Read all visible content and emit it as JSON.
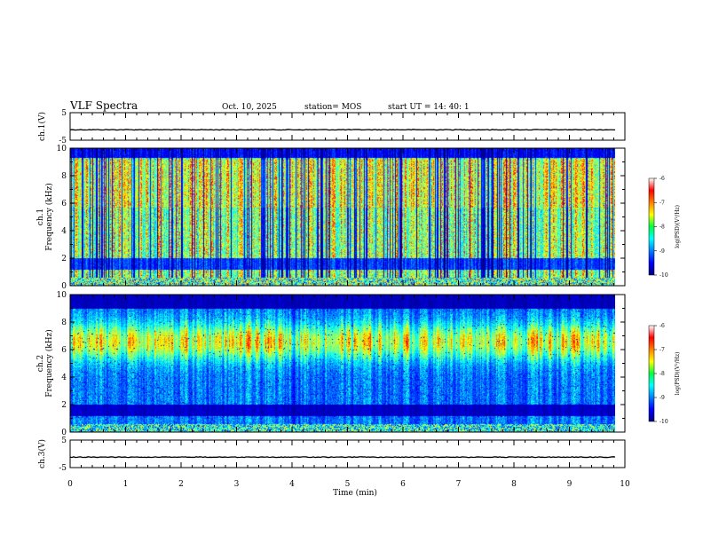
{
  "header": {
    "title": "VLF Spectra",
    "date": "Oct. 10, 2025",
    "station": "station= MOS",
    "start_ut": "start UT =   14: 40: 1"
  },
  "chart_data": {
    "type": "heatmap",
    "title": "VLF Spectra",
    "xlabel": "Time  (min)",
    "xlim": [
      0,
      10
    ],
    "x_ticks": [
      "0",
      "1",
      "2",
      "3",
      "4",
      "5",
      "6",
      "7",
      "8",
      "9",
      "10"
    ],
    "data_end_min": 9.83,
    "panels": [
      {
        "id": "ch1-voltage",
        "kind": "line",
        "ylabel": "ch.1(V)",
        "ylim": [
          -5,
          5
        ],
        "y_ticks": [
          "5",
          "-5"
        ],
        "baseline": -1.2
      },
      {
        "id": "ch1-spectrogram",
        "kind": "spectrogram",
        "ylabel_top": "ch.1",
        "ylabel": "Frequency (kHz)",
        "ylim": [
          0,
          10
        ],
        "y_ticks": [
          "0",
          "2",
          "4",
          "6",
          "8",
          "10"
        ],
        "colorbar": {
          "label": "log(PSD)(V²/Hz)",
          "range": [
            -10,
            -6
          ],
          "ticks": [
            "-6",
            "-7",
            "-8",
            "-9",
            "-10"
          ]
        }
      },
      {
        "id": "ch2-spectrogram",
        "kind": "spectrogram",
        "ylabel_top": "ch.2",
        "ylabel": "Frequency (kHz)",
        "ylim": [
          0,
          10
        ],
        "y_ticks": [
          "0",
          "2",
          "4",
          "6",
          "8",
          "10"
        ],
        "colorbar": {
          "label": "log(PSD)(V²/Hz)",
          "range": [
            -10,
            -6
          ],
          "ticks": [
            "-6",
            "-7",
            "-8",
            "-9",
            "-10"
          ]
        }
      },
      {
        "id": "ch3-voltage",
        "kind": "line",
        "ylabel": "ch.3(V)",
        "ylim": [
          -5,
          5
        ],
        "y_ticks": [
          "5",
          "-5"
        ],
        "baseline": -1.2
      }
    ]
  }
}
